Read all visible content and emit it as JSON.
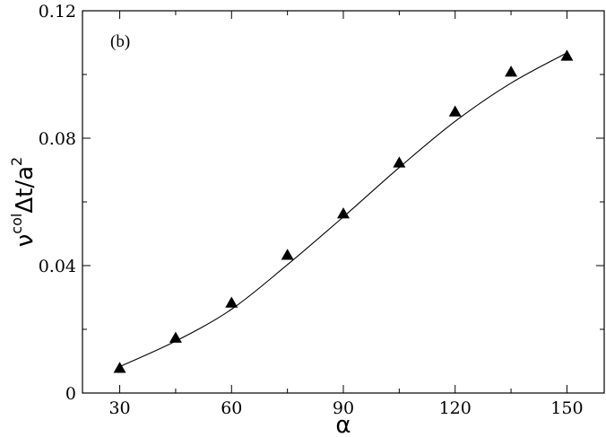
{
  "chart_data": {
    "type": "scatter",
    "panel_label": "(b)",
    "xlabel": "α",
    "ylabel": {
      "base": "ν",
      "sup1": "col",
      "mid": "Δt/a",
      "sup2": "2"
    },
    "xlim": [
      20,
      160
    ],
    "ylim": [
      0,
      0.12
    ],
    "x_ticks": [
      {
        "value": 30,
        "label": "30"
      },
      {
        "value": 60,
        "label": "60"
      },
      {
        "value": 90,
        "label": "90"
      },
      {
        "value": 120,
        "label": "120"
      },
      {
        "value": 150,
        "label": "150"
      }
    ],
    "y_ticks": [
      {
        "value": 0,
        "label": "0"
      },
      {
        "value": 0.04,
        "label": "0.04"
      },
      {
        "value": 0.08,
        "label": "0.08"
      },
      {
        "value": 0.12,
        "label": "0.12"
      }
    ],
    "grid": false,
    "series": [
      {
        "marker": "triangle",
        "color": "#000000",
        "x": [
          30,
          45,
          60,
          75,
          90,
          105,
          120,
          135,
          150
        ],
        "y": [
          0.0078,
          0.0173,
          0.0283,
          0.0433,
          0.0563,
          0.0723,
          0.0883,
          0.1008,
          0.1058
        ]
      },
      {
        "style": "line",
        "color": "#000000",
        "x": [
          30,
          45,
          60,
          75,
          90,
          105,
          120,
          135,
          150
        ],
        "y": [
          0.0083,
          0.0163,
          0.0263,
          0.0403,
          0.0553,
          0.0708,
          0.0853,
          0.0973,
          0.1068
        ]
      }
    ]
  }
}
